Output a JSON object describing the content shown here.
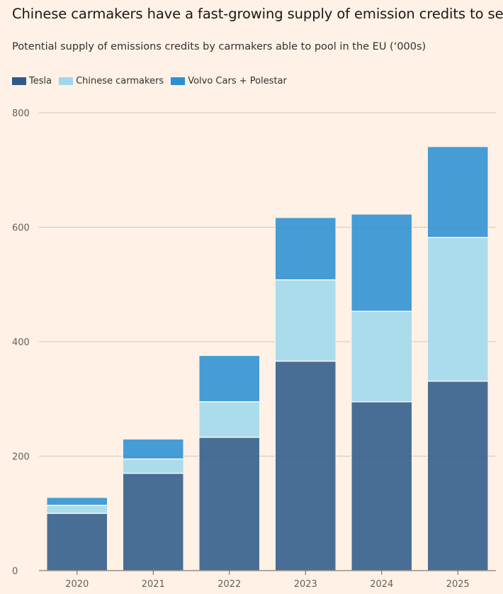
{
  "chart_data": {
    "type": "bar",
    "stacked": true,
    "title": "Chinese carmakers have a fast-growing supply of emission credits to sell",
    "subtitle": "Potential supply of emissions credits by carmakers able to pool in the EU (‘000s)",
    "categories": [
      "2020",
      "2021",
      "2022",
      "2023",
      "2024",
      "2025"
    ],
    "series": [
      {
        "name": "Tesla",
        "color": "#2e5a8a",
        "values": [
          100,
          170,
          233,
          366,
          295,
          331
        ]
      },
      {
        "name": "Chinese carmakers",
        "color": "#9fd8ec",
        "values": [
          14,
          25,
          62,
          142,
          158,
          251
        ]
      },
      {
        "name": "Volvo Cars + Polestar",
        "color": "#2b8fd1",
        "values": [
          14,
          35,
          81,
          109,
          170,
          159
        ]
      }
    ],
    "yticks": [
      0,
      200,
      400,
      600,
      800
    ],
    "ylim": [
      0,
      800
    ],
    "xlabel": "",
    "ylabel": "",
    "grid": true,
    "legend_position": "top-left"
  }
}
